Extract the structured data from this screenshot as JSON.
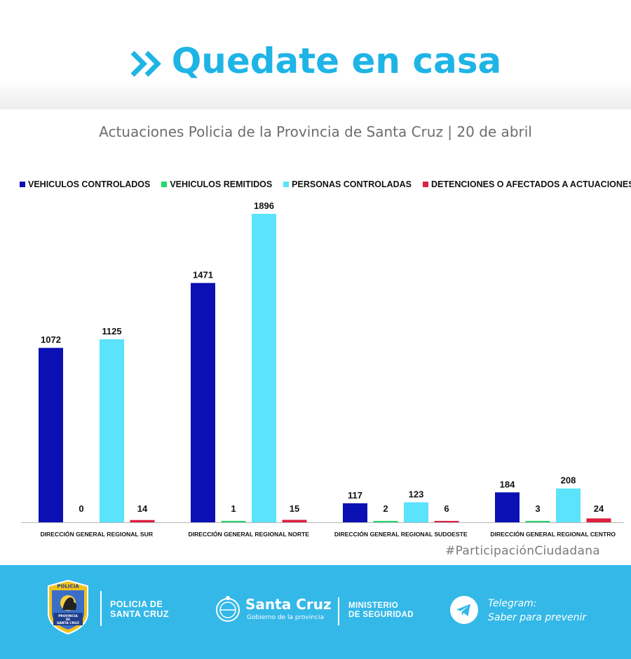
{
  "header": {
    "headline": "Quedate en casa"
  },
  "subtitle": "Actuaciones Policia de la Provincia de Santa Cruz | 20 de abril",
  "chart_data": {
    "type": "bar",
    "title": "",
    "xlabel": "",
    "ylabel": "",
    "ylim": [
      0,
      1896
    ],
    "grid": false,
    "legend_position": "top",
    "categories": [
      "DIRECCIÓN GENERAL REGIONAL SUR",
      "DIRECCIÓN GENERAL REGIONAL NORTE",
      "DIRECCIÓN GENERAL REGIONAL SUDOESTE",
      "DIRECCIÓN GENERAL REGIONAL CENTRO"
    ],
    "series": [
      {
        "name": "VEHICULOS CONTROLADOS",
        "color": "#0a10b4",
        "values": [
          1072,
          1471,
          117,
          184
        ]
      },
      {
        "name": "VEHICULOS REMITIDOS",
        "color": "#22d86a",
        "values": [
          0,
          1,
          2,
          3
        ]
      },
      {
        "name": "PERSONAS CONTROLADAS",
        "color": "#5ae3fb",
        "values": [
          1125,
          1896,
          123,
          208
        ]
      },
      {
        "name": "DETENCIONES O AFECTADOS A ACTUACIONES",
        "color": "#dd2040",
        "values": [
          14,
          15,
          6,
          24
        ]
      }
    ]
  },
  "hashtag": "#ParticipaciónCiudadana",
  "footer": {
    "police_line1": "POLICIA DE",
    "police_line2": "SANTA CRUZ",
    "badge_top": "POLICIA",
    "badge_line1": "PROVINCIA",
    "badge_line2": "DE",
    "badge_line3": "SANTA CRUZ",
    "gov_name": "Santa Cruz",
    "gov_sub": "Gobierno de la provincia",
    "ministry_line1": "MINISTERIO",
    "ministry_line2": "DE SEGURIDAD",
    "telegram_line1": "Telegram:",
    "telegram_line2": "Saber para prevenir"
  }
}
